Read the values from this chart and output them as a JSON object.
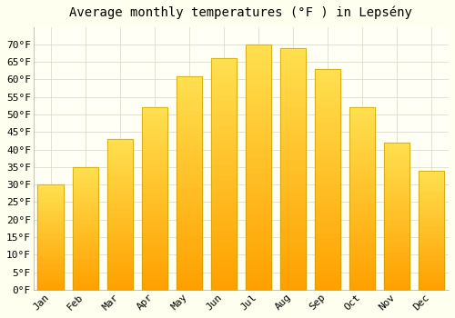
{
  "title": "Average monthly temperatures (°F ) in Lepsény",
  "months": [
    "Jan",
    "Feb",
    "Mar",
    "Apr",
    "May",
    "Jun",
    "Jul",
    "Aug",
    "Sep",
    "Oct",
    "Nov",
    "Dec"
  ],
  "values": [
    30,
    35,
    43,
    52,
    61,
    66,
    70,
    69,
    63,
    52,
    42,
    34
  ],
  "bar_color_top": "#FFD84D",
  "bar_color_bottom": "#FFA000",
  "bar_edge_color": "#C8A000",
  "background_color": "#FFFFF0",
  "plot_bg_color": "#FFFFF5",
  "grid_color": "#ddddcc",
  "ylim": [
    0,
    75
  ],
  "yticks": [
    0,
    5,
    10,
    15,
    20,
    25,
    30,
    35,
    40,
    45,
    50,
    55,
    60,
    65,
    70
  ],
  "title_fontsize": 10,
  "tick_fontsize": 8,
  "font_family": "monospace"
}
